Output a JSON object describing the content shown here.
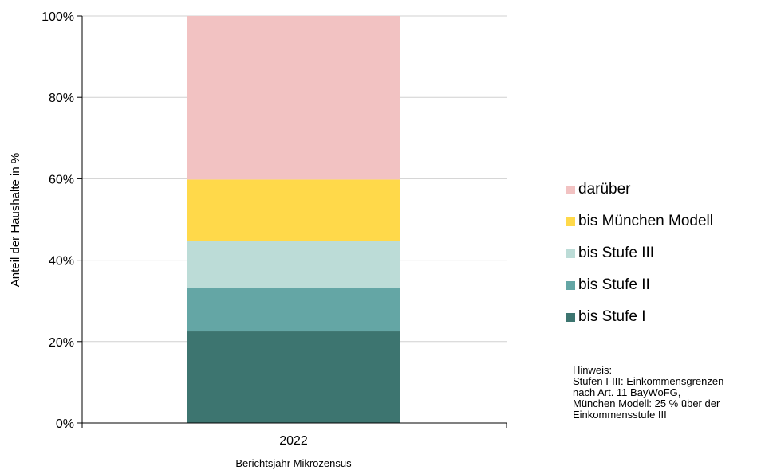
{
  "chart_data": {
    "type": "bar",
    "stacked": true,
    "categories": [
      "2022"
    ],
    "series": [
      {
        "name": "bis Stufe I",
        "values": [
          22.5
        ],
        "color": "#3d7570"
      },
      {
        "name": "bis Stufe II",
        "values": [
          10.6
        ],
        "color": "#64a6a5"
      },
      {
        "name": "bis Stufe III",
        "values": [
          11.7
        ],
        "color": "#bcdcd7"
      },
      {
        "name": "bis München Modell",
        "values": [
          15.0
        ],
        "color": "#ffd94a"
      },
      {
        "name": "darüber",
        "values": [
          40.2
        ],
        "color": "#f2c2c2"
      }
    ],
    "xlabel": "Berichtsjahr Mikrozensus",
    "ylabel": "Anteil der Haushalte in %",
    "ylim": [
      0,
      100
    ],
    "yticks": [
      "0%",
      "20%",
      "40%",
      "60%",
      "80%",
      "100%"
    ],
    "grid": true,
    "legend_position": "right"
  },
  "note": {
    "lines": [
      "Hinweis:",
      "Stufen I-III: Einkommensgrenzen",
      "nach Art. 11 BayWoFG,",
      "München Modell: 25 % über der",
      "Einkommensstufe III"
    ]
  }
}
